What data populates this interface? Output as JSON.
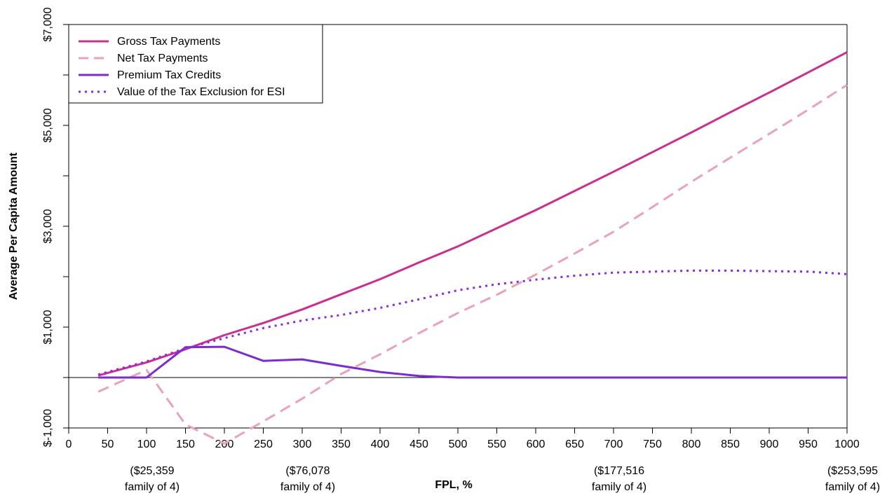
{
  "chart_data": {
    "type": "line",
    "xlabel": "FPL, %",
    "ylabel": "Average Per Capita Amount",
    "xlim": [
      0,
      1000
    ],
    "ylim": [
      -1000,
      7000
    ],
    "x_ticks": [
      0,
      50,
      100,
      150,
      200,
      250,
      300,
      350,
      400,
      450,
      500,
      550,
      600,
      650,
      700,
      750,
      800,
      850,
      900,
      950,
      1000
    ],
    "y_ticks": [
      {
        "value": -1000,
        "label": "$-1,000"
      },
      {
        "value": 1000,
        "label": "$1,000"
      },
      {
        "value": 3000,
        "label": "$3,000"
      },
      {
        "value": 5000,
        "label": "$5,000"
      },
      {
        "value": 7000,
        "label": "$7,000"
      }
    ],
    "y_minor_ticks": [
      0,
      2000,
      4000,
      6000
    ],
    "zero_line": true,
    "grid": false,
    "legend_position": "top-left",
    "x_annotations": [
      {
        "x": 100,
        "line1": "($25,359",
        "line2": "family of 4)"
      },
      {
        "x": 300,
        "line1": "($76,078",
        "line2": "family of 4)"
      },
      {
        "x": 700,
        "line1": "($177,516",
        "line2": "family of 4)"
      },
      {
        "x": 1000,
        "line1": "($253,595",
        "line2": "family of 4)"
      }
    ],
    "series": [
      {
        "name": "Gross Tax Payments",
        "color": "#cc2e8f",
        "dash": "solid",
        "x": [
          38,
          100,
          150,
          200,
          250,
          300,
          350,
          400,
          450,
          500,
          550,
          600,
          650,
          700,
          750,
          800,
          850,
          900,
          950,
          1000
        ],
        "values": [
          40,
          300,
          560,
          840,
          1080,
          1350,
          1650,
          1950,
          2280,
          2600,
          2960,
          3320,
          3700,
          4080,
          4470,
          4860,
          5260,
          5650,
          6050,
          6450
        ]
      },
      {
        "name": "Net Tax Payments",
        "color": "#eaa2b8",
        "dash": "dashed",
        "x": [
          38,
          100,
          150,
          200,
          250,
          300,
          350,
          400,
          450,
          500,
          550,
          600,
          650,
          700,
          750,
          800,
          850,
          900,
          950,
          1000
        ],
        "values": [
          -280,
          150,
          -930,
          -1310,
          -870,
          -420,
          70,
          460,
          880,
          1280,
          1640,
          2040,
          2460,
          2890,
          3380,
          3880,
          4360,
          4830,
          5310,
          5800
        ]
      },
      {
        "name": "Premium Tax Credits",
        "color": "#7c2bd1",
        "dash": "solid",
        "x": [
          38,
          100,
          150,
          200,
          250,
          300,
          350,
          400,
          450,
          500,
          550,
          600,
          650,
          700,
          750,
          800,
          850,
          900,
          950,
          1000
        ],
        "values": [
          0,
          0,
          600,
          610,
          330,
          360,
          230,
          110,
          30,
          0,
          0,
          0,
          0,
          0,
          0,
          0,
          0,
          0,
          0,
          0
        ]
      },
      {
        "name": "Value of the Tax Exclusion for ESI",
        "color": "#8a2be2",
        "dash": "dotted",
        "x": [
          38,
          100,
          150,
          200,
          250,
          300,
          350,
          400,
          450,
          500,
          550,
          600,
          650,
          700,
          750,
          800,
          850,
          900,
          950,
          1000
        ],
        "values": [
          60,
          320,
          580,
          780,
          980,
          1130,
          1240,
          1380,
          1550,
          1730,
          1850,
          1940,
          2020,
          2080,
          2100,
          2120,
          2120,
          2110,
          2100,
          2050
        ]
      }
    ]
  }
}
